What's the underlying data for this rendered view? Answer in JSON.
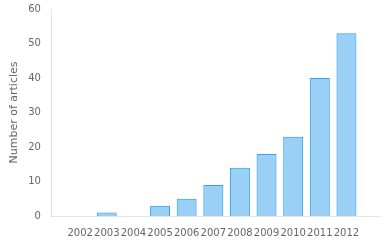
{
  "chart_data": {
    "type": "bar",
    "x": [
      2002,
      2003,
      2004,
      2005,
      2006,
      2007,
      2008,
      2009,
      2010,
      2011,
      2012
    ],
    "values": [
      0,
      1,
      0,
      3,
      5,
      9,
      14,
      18,
      23,
      40,
      53
    ],
    "ylabel": "Number of articles",
    "xlim": [
      2001.5,
      2012.7
    ],
    "xticks": [
      2002,
      2003,
      2004,
      2005,
      2006,
      2007,
      2008,
      2009,
      2010,
      2011,
      2012
    ],
    "ylim": [
      0,
      60
    ],
    "yticks": [
      0,
      10,
      20,
      30,
      40,
      50,
      60
    ],
    "grid": false
  }
}
